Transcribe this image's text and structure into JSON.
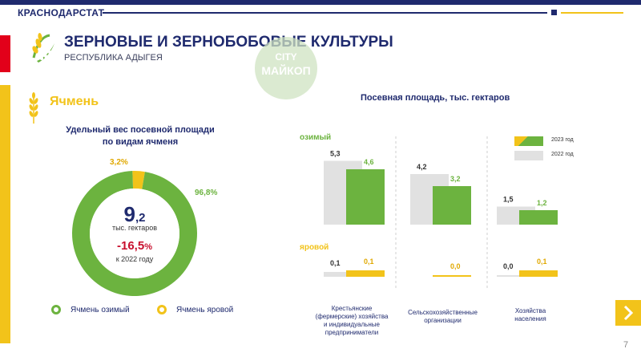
{
  "header": {
    "brand": "КРАСНОДАРСТАТ",
    "title": "ЗЕРНОВЫЕ И ЗЕРНОБОБОВЫЕ КУЛЬТУРЫ",
    "subtitle": "РЕСПУБЛИКА АДЫГЕЯ",
    "watermark_line1": "CITY",
    "watermark_line2": "МАЙКОП"
  },
  "crop": {
    "name": "Ячмень"
  },
  "donut": {
    "title_line1": "Удельный вес посевной площади",
    "title_line2": "по видам ячменя",
    "small_pct": "3,2%",
    "big_pct": "96,8%",
    "center_int": "9",
    "center_dec": ",2",
    "center_unit": "тыс. гектаров",
    "change_value": "-16,5",
    "change_pct": "%",
    "change_ref": "к 2022 году",
    "legend_winter": "Ячмень озимый",
    "legend_spring": "Ячмень яровой"
  },
  "chart_data": [
    {
      "type": "pie",
      "title": "Удельный вес посевной площади по видам ячменя",
      "labels": [
        "Ячмень озимый",
        "Ячмень яровой"
      ],
      "values": [
        96.8,
        3.2
      ],
      "colors": [
        "#6cb33f",
        "#f2c31a"
      ]
    },
    {
      "type": "bar",
      "title": "Посевная площадь, тыс. гектаров",
      "categories": [
        "Крестьянские (фермерские) хозяйства и индивидуальные предприниматели",
        "Сельскохозяйственные организации",
        "Хозяйства населения"
      ],
      "groups": [
        {
          "name": "озимый",
          "series": [
            {
              "name": "2022 год",
              "values": [
                5.3,
                4.2,
                1.5
              ],
              "labels": [
                "5,3",
                "4,2",
                "1,5"
              ]
            },
            {
              "name": "2023 год",
              "values": [
                4.6,
                3.2,
                1.2
              ],
              "labels": [
                "4,6",
                "3,2",
                "1,2"
              ]
            }
          ]
        },
        {
          "name": "яровой",
          "series": [
            {
              "name": "2022 год",
              "values": [
                0.1,
                0.0,
                0.0
              ],
              "labels": [
                "0,1",
                "",
                "0,0"
              ]
            },
            {
              "name": "2023 год",
              "values": [
                0.1,
                0.0,
                0.1
              ],
              "labels": [
                "0,1",
                "0,0",
                "0,1"
              ]
            }
          ]
        }
      ],
      "colors": {
        "2023": "#6cb33f",
        "2022": "#e1e1e1",
        "spring": "#f2c31a"
      }
    }
  ],
  "chart_labels": {
    "title": "Посевная площадь, тыс. гектаров",
    "winter": "озимый",
    "spring": "яровой",
    "legend_2023": "2023 год",
    "legend_2022": "2022 год"
  },
  "categories": {
    "c1": [
      "Крестьянские",
      "(фермерские) хозяйства",
      "и индивидуальные",
      "предприниматели"
    ],
    "c2": [
      "Сельскохозяйственные",
      "организации"
    ],
    "c3": [
      "Хозяйства",
      "населения"
    ]
  },
  "page": {
    "number": "7",
    "next_icon": "chevron-right-icon"
  }
}
